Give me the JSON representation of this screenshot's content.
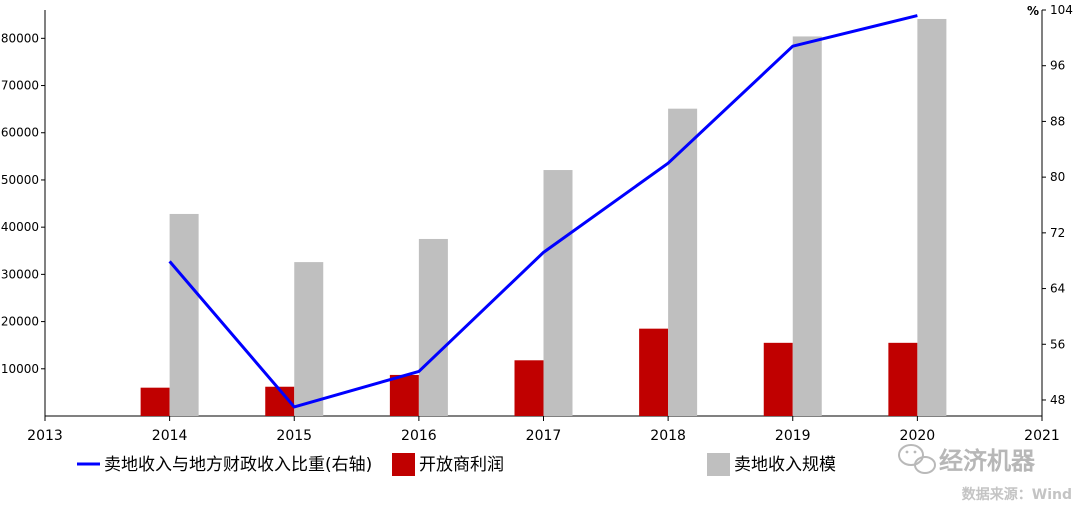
{
  "chart_data": {
    "type": "bar",
    "x_ticks": [
      "2013",
      "2014",
      "2015",
      "2016",
      "2017",
      "2018",
      "2019",
      "2020",
      "2021"
    ],
    "categories": [
      "2014",
      "2015",
      "2016",
      "2017",
      "2018",
      "2019",
      "2020"
    ],
    "series": [
      {
        "name": "开放商利润",
        "type": "bar",
        "axis": "left",
        "color": "#c00000",
        "values": [
          6000,
          6200,
          8700,
          11800,
          18500,
          15500,
          15500
        ]
      },
      {
        "name": "卖地收入规模",
        "type": "bar",
        "axis": "left",
        "color": "#bfbfbf",
        "values": [
          42800,
          32600,
          37500,
          52100,
          65100,
          80400,
          84100
        ]
      },
      {
        "name": "卖地收入与地方财政收入比重(右轴)",
        "type": "line",
        "axis": "right",
        "color": "#0000ff",
        "values": [
          67.9,
          47.0,
          52.1,
          69.2,
          82.0,
          98.8,
          103.2
        ]
      }
    ],
    "left_axis": {
      "min": 0,
      "max": 86000,
      "ticks": [
        10000,
        20000,
        30000,
        40000,
        50000,
        60000,
        70000,
        80000
      ]
    },
    "right_axis": {
      "min": 45.7,
      "max": 104,
      "unit": "%",
      "ticks": [
        48,
        56,
        64,
        72,
        80,
        88,
        96,
        104
      ]
    },
    "legend": {
      "placement": "bottom",
      "items": [
        "卖地收入与地方财政收入比重(右轴)",
        "开放商利润",
        "卖地收入规模"
      ]
    },
    "grid": false
  },
  "watermark": {
    "text": "经济机器",
    "icon": "wechat-icon"
  },
  "source": "数据来源：Wind"
}
